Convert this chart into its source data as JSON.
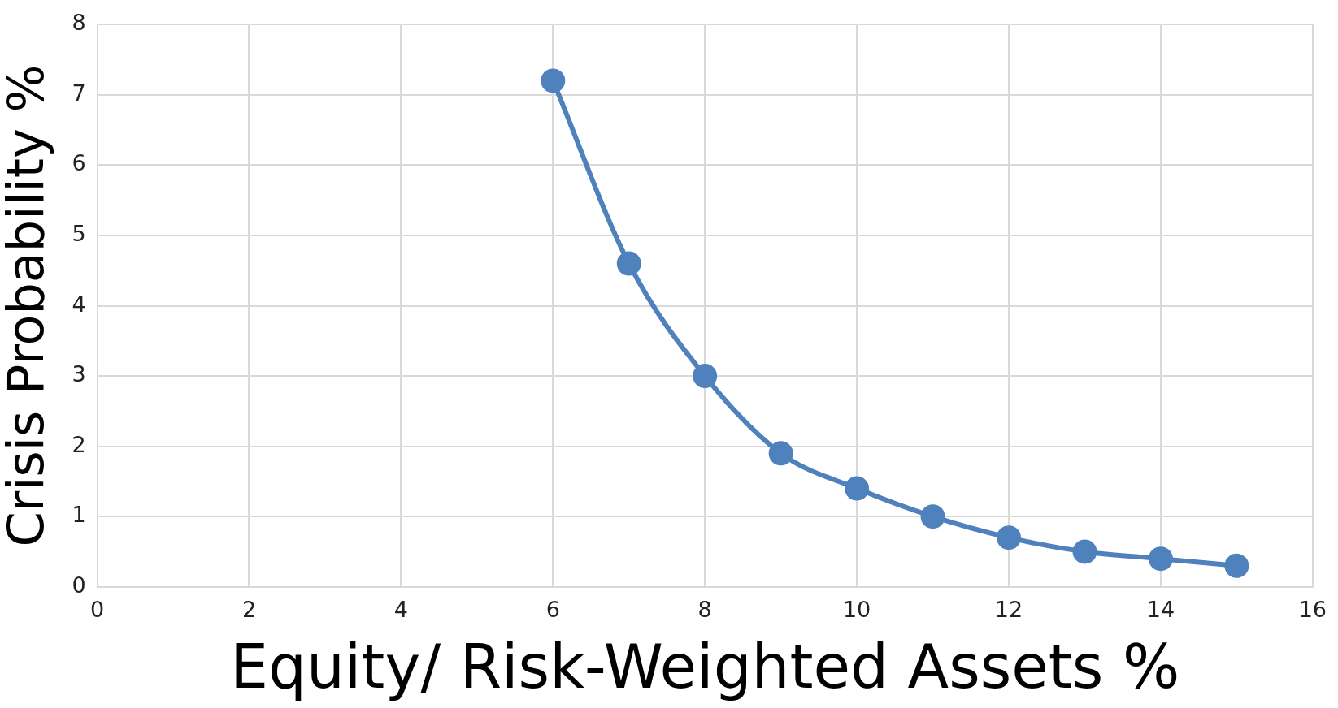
{
  "chart_data": {
    "type": "line",
    "xlabel": "Equity/ Risk-Weighted Assets %",
    "ylabel": "Crisis Probability %",
    "x": [
      6,
      7,
      8,
      9,
      10,
      11,
      12,
      13,
      14,
      15
    ],
    "series": [
      {
        "color": "#4f81bd",
        "values": [
          7.2,
          4.6,
          3.0,
          1.9,
          1.4,
          1.0,
          0.7,
          0.5,
          0.4,
          0.3
        ]
      }
    ],
    "xlim": [
      0,
      16
    ],
    "xticks": [
      0,
      2,
      4,
      6,
      8,
      10,
      12,
      14,
      16
    ],
    "ylim": [
      0,
      8
    ],
    "yticks": [
      0,
      1,
      2,
      3,
      4,
      5,
      6,
      7,
      8
    ],
    "grid": true,
    "legend": false,
    "marker": "circle",
    "line_style": "solid"
  }
}
